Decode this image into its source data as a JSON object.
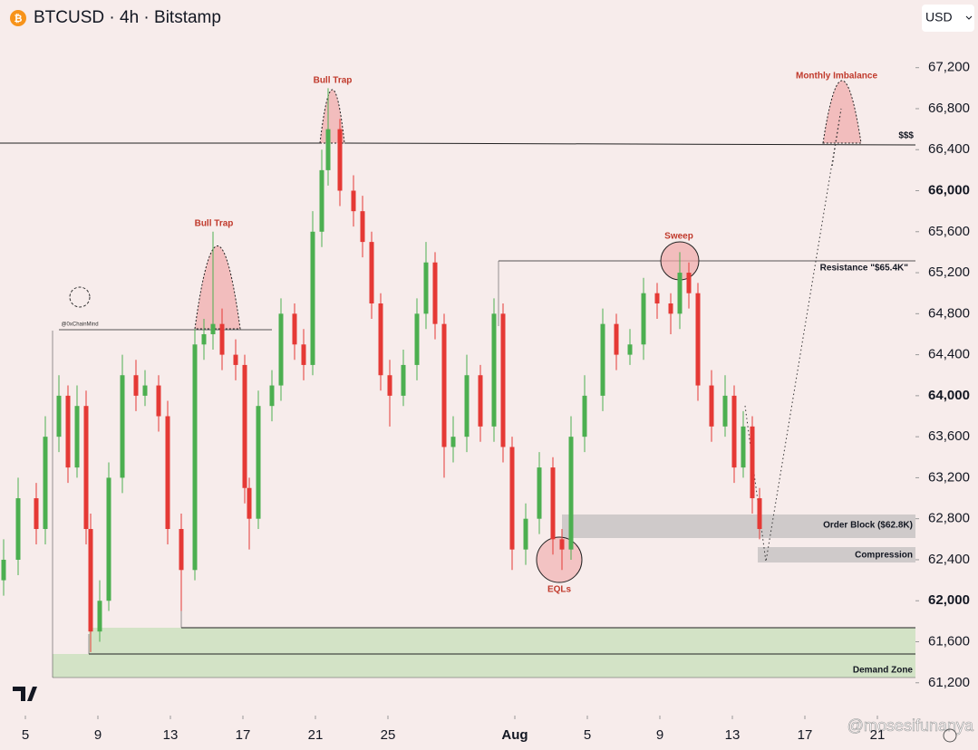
{
  "chart_data": {
    "type": "candlestick",
    "title": "BTCUSD · 4h · Bitstamp",
    "currency": "USD",
    "watermark": "@mosesifunanya",
    "author_tag": "@0xChainMind",
    "annotations": [
      "Bull Trap",
      "Bull Trap",
      "Sweep",
      "EQLs",
      "Monthly Imbalance",
      "$$$",
      "Resistance \"$65.4K\"",
      "Order Block ($62.8K)",
      "Compression",
      "Demand Zone"
    ],
    "up_color": "#4caf50",
    "down_color": "#e53935",
    "xlim": [
      3.6,
      54.1
    ],
    "ylim": [
      60880,
      67860
    ],
    "xticks": [
      5,
      9,
      13,
      17,
      21,
      25,
      {
        "value": 32,
        "label": "Aug"
      },
      {
        "value": 36,
        "label": "5"
      },
      {
        "value": 40,
        "label": "9"
      },
      {
        "value": 44,
        "label": "13"
      },
      {
        "value": 48,
        "label": "17"
      },
      {
        "value": 52,
        "label": "21"
      }
    ],
    "yticks": [
      {
        "value": 61200,
        "label": "61,200"
      },
      {
        "value": 61600,
        "label": "61,600"
      },
      {
        "value": 62000,
        "label": "62,000"
      },
      {
        "value": 62400,
        "label": "62,400"
      },
      {
        "value": 62800,
        "label": "62,800"
      },
      {
        "value": 63200,
        "label": "63,200"
      },
      {
        "value": 63600,
        "label": "63,600"
      },
      {
        "value": 64000,
        "label": "64,000"
      },
      {
        "value": 64400,
        "label": "64,400"
      },
      {
        "value": 64800,
        "label": "64,800"
      },
      {
        "value": 65200,
        "label": "65,200"
      },
      {
        "value": 65600,
        "label": "65,600"
      },
      {
        "value": 66000,
        "label": "66,000"
      },
      {
        "value": 66400,
        "label": "66,400"
      },
      {
        "value": 66800,
        "label": "66,800"
      },
      {
        "value": 67200,
        "label": "67,200"
      }
    ],
    "x": [
      3.8,
      4.6,
      5.6,
      6.1,
      6.85,
      7.35,
      7.85,
      8.35,
      8.6,
      9.1,
      9.6,
      10.35,
      11.1,
      11.6,
      12.35,
      12.85,
      13.6,
      14.35,
      14.85,
      15.35,
      15.85,
      16.6,
      17.1,
      17.35,
      17.85,
      18.6,
      19.1,
      19.85,
      20.35,
      20.85,
      21.35,
      21.7,
      22.35,
      23.1,
      23.6,
      24.1,
      24.6,
      25.1,
      25.85,
      26.6,
      27.1,
      27.6,
      28.1,
      28.6,
      29.35,
      30.1,
      30.85,
      31.35,
      31.85,
      32.6,
      33.35,
      34.1,
      34.6,
      35.1,
      35.85,
      36.85,
      37.6,
      38.35,
      39.1,
      39.85,
      40.6,
      41.1,
      41.6,
      42.1,
      42.85,
      43.6,
      44.1,
      44.6,
      45.1,
      45.5
    ],
    "open": [
      62200,
      62400,
      63000,
      62700,
      63600,
      64000,
      63300,
      63900,
      62700,
      61700,
      62000,
      63200,
      64200,
      64000,
      64100,
      63800,
      62700,
      62300,
      64500,
      64600,
      64700,
      64400,
      64300,
      63100,
      62800,
      63900,
      64100,
      64800,
      64500,
      64300,
      65600,
      66200,
      66600,
      66000,
      65800,
      65500,
      64900,
      64200,
      64000,
      64300,
      64800,
      65300,
      64700,
      63500,
      63600,
      64200,
      63700,
      64800,
      63500,
      62500,
      62800,
      63300,
      62600,
      62500,
      63600,
      64000,
      64700,
      64400,
      64500,
      65000,
      64900,
      64800,
      65200,
      65000,
      64100,
      63700,
      64000,
      63300,
      63700,
      63000
    ],
    "high": [
      62600,
      63200,
      63150,
      63800,
      64200,
      64100,
      64100,
      64050,
      62850,
      62200,
      63350,
      64400,
      64350,
      64250,
      64200,
      63950,
      62850,
      64650,
      64750,
      65600,
      64850,
      64550,
      64400,
      63200,
      64050,
      64250,
      64950,
      64900,
      64650,
      65800,
      66400,
      67000,
      66700,
      66150,
      65950,
      65600,
      65000,
      64350,
      64450,
      64950,
      65500,
      65400,
      64800,
      63800,
      64400,
      64300,
      64950,
      64900,
      63600,
      62950,
      63450,
      63400,
      62700,
      63800,
      64200,
      64850,
      64800,
      64650,
      65150,
      65100,
      65000,
      65400,
      65300,
      65100,
      64250,
      64200,
      64100,
      63850,
      63800,
      63100
    ],
    "low": [
      62050,
      62250,
      62550,
      62550,
      63450,
      63150,
      63200,
      62550,
      61500,
      61600,
      61900,
      63050,
      63850,
      63900,
      63650,
      62550,
      61900,
      62200,
      64350,
      64450,
      64250,
      64150,
      62950,
      62500,
      62700,
      63750,
      63950,
      64350,
      64150,
      64200,
      65450,
      66050,
      65850,
      65650,
      65350,
      64750,
      64050,
      63700,
      63900,
      64150,
      64650,
      64550,
      63200,
      63350,
      63450,
      63550,
      63550,
      63350,
      62300,
      62350,
      62650,
      62450,
      62300,
      62400,
      63450,
      63850,
      64250,
      64300,
      64350,
      64750,
      64600,
      64650,
      64850,
      63950,
      63550,
      63600,
      63150,
      63200,
      62850,
      62600
    ],
    "close": [
      62400,
      63000,
      62700,
      63600,
      64000,
      63300,
      63900,
      62700,
      61700,
      62000,
      63200,
      64200,
      64000,
      64100,
      63800,
      62700,
      62300,
      64500,
      64600,
      64700,
      64400,
      64300,
      63100,
      62800,
      63900,
      64100,
      64800,
      64500,
      64300,
      65600,
      66200,
      66600,
      66000,
      65800,
      65500,
      64900,
      64200,
      64000,
      64300,
      64800,
      65300,
      64700,
      63500,
      63600,
      64200,
      63700,
      64800,
      63500,
      62500,
      62800,
      63300,
      62600,
      62500,
      63600,
      64000,
      64700,
      64400,
      64500,
      65000,
      64900,
      64800,
      65200,
      65000,
      64100,
      63700,
      64000,
      63300,
      63700,
      63000,
      62700
    ]
  }
}
